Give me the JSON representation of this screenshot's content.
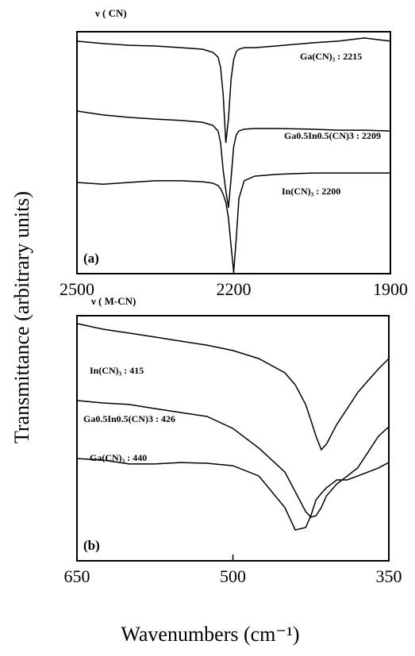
{
  "chart_data": [
    {
      "type": "line",
      "title": "ν ( CN)",
      "panel_label": "(a)",
      "ylabel": "Transmittance (arbitrary units)",
      "x": [
        2500,
        2450,
        2400,
        2350,
        2300,
        2260,
        2240,
        2230,
        2225,
        2220,
        2215,
        2210,
        2205,
        2200,
        2195,
        2190,
        2180,
        2160,
        2120,
        2050,
        2000,
        1950,
        1900
      ],
      "xlim": [
        2500,
        1900
      ],
      "xticks": [
        2500,
        2200,
        1900
      ],
      "ylim": [
        0,
        100
      ],
      "series": [
        {
          "name": "Ga(CN)₃ : 2215",
          "color": "#000000",
          "values": [
            96.1,
            95.1,
            94.4,
            94.1,
            93.4,
            92.8,
            91.5,
            89.5,
            85.2,
            73.8,
            54.1,
            63.9,
            80.3,
            88.5,
            91.8,
            92.8,
            93.4,
            93.4,
            94.1,
            95.4,
            96.1,
            97.4,
            96.1
          ]
        },
        {
          "name": "Ga0.5In0.5(CN)3 : 2209",
          "color": "#000000",
          "values": [
            67.2,
            65.6,
            64.6,
            63.9,
            63.3,
            62.6,
            61.3,
            59.0,
            54.1,
            42.6,
            34.4,
            27.2,
            39.3,
            52.5,
            57.4,
            59.0,
            59.7,
            60.0,
            60.0,
            59.7,
            59.3,
            59.3,
            59.0
          ]
        },
        {
          "name": "In(CN)₃ : 2200",
          "color": "#000000",
          "values": [
            37.7,
            37.0,
            37.7,
            38.4,
            38.4,
            38.0,
            37.4,
            36.4,
            35.1,
            32.8,
            29.5,
            23.0,
            11.5,
            0.7,
            14.8,
            31.1,
            38.4,
            40.3,
            41.0,
            41.6,
            41.6,
            41.6,
            41.6
          ]
        }
      ]
    },
    {
      "type": "line",
      "title": "ν ( M-CN)",
      "panel_label": "(b)",
      "xlabel": "Wavenumbers (cm⁻¹)",
      "x": [
        650,
        625,
        600,
        575,
        550,
        525,
        500,
        475,
        450,
        440,
        430,
        425,
        420,
        415,
        410,
        400,
        390,
        380,
        370,
        360,
        350
      ],
      "xlim": [
        650,
        350
      ],
      "xticks": [
        650,
        500,
        350
      ],
      "ylim": [
        0,
        100
      ],
      "series": [
        {
          "name": "In(CN)₃ : 415",
          "color": "#000000",
          "values": [
            96.8,
            94.5,
            92.9,
            91.3,
            89.6,
            88.0,
            85.8,
            82.5,
            76.7,
            71.8,
            63.8,
            57.3,
            50.8,
            45.3,
            47.6,
            55.7,
            62.1,
            68.6,
            73.5,
            78.3,
            82.5
          ]
        },
        {
          "name": "Ga0.5In0.5(CN)3 : 426",
          "color": "#000000",
          "values": [
            65.4,
            64.4,
            63.8,
            62.1,
            60.5,
            58.9,
            54.0,
            46.0,
            36.2,
            28.2,
            20.1,
            17.8,
            18.4,
            21.7,
            26.5,
            31.4,
            34.6,
            37.9,
            44.3,
            50.8,
            54.7
          ]
        },
        {
          "name": "Ga(CN)₃ : 440",
          "color": "#000000",
          "values": [
            41.7,
            41.1,
            39.5,
            39.5,
            40.1,
            39.8,
            38.8,
            34.6,
            21.7,
            12.6,
            13.6,
            18.4,
            24.9,
            27.5,
            29.8,
            33.0,
            33.0,
            34.6,
            36.2,
            37.9,
            40.1
          ]
        }
      ]
    }
  ]
}
